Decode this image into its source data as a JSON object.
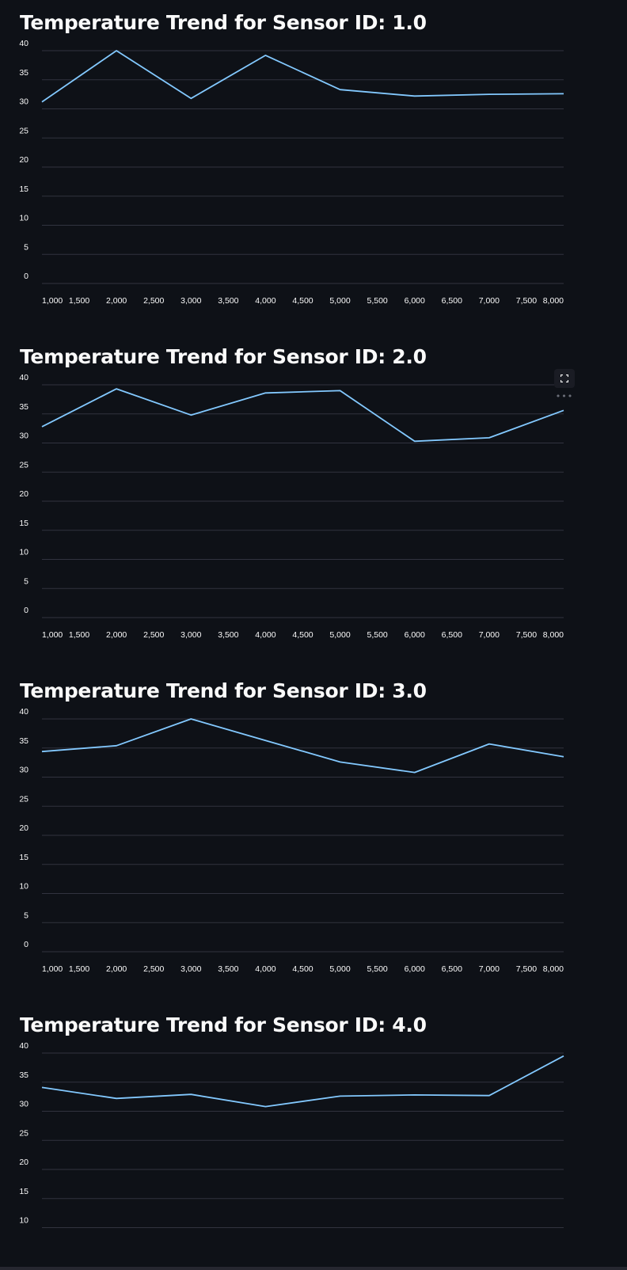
{
  "colors": {
    "background": "#0e1117",
    "line": "#83c9ff",
    "grid": "#31333f",
    "text": "#fafafa"
  },
  "toolbar": {
    "fullscreen_icon": "fullscreen-icon",
    "more_icon": "more-horizontal-icon",
    "more_label": "•••"
  },
  "chart_data": [
    {
      "type": "line",
      "title": "Temperature Trend for Sensor ID: 1.0",
      "xlabel": "",
      "ylabel": "",
      "x": [
        1000,
        2000,
        3000,
        4000,
        5000,
        6000,
        7000,
        8000
      ],
      "y": [
        31.2,
        40.0,
        31.8,
        39.2,
        33.3,
        32.2,
        32.5,
        32.6
      ],
      "xlim": [
        1000,
        8000
      ],
      "ylim": [
        0,
        40
      ],
      "x_ticks": [
        "1,000",
        "1,500",
        "2,000",
        "2,500",
        "3,000",
        "3,500",
        "4,000",
        "4,500",
        "5,000",
        "5,500",
        "6,000",
        "6,500",
        "7,000",
        "7,500",
        "8,000"
      ],
      "y_ticks": [
        "0",
        "5",
        "10",
        "15",
        "20",
        "25",
        "30",
        "35",
        "40"
      ],
      "grid": true
    },
    {
      "type": "line",
      "title": "Temperature Trend for Sensor ID: 2.0",
      "xlabel": "",
      "ylabel": "",
      "x": [
        1000,
        2000,
        3000,
        4000,
        5000,
        6000,
        7000,
        8000
      ],
      "y": [
        32.8,
        39.3,
        34.8,
        38.6,
        39.0,
        30.3,
        30.9,
        35.6
      ],
      "xlim": [
        1000,
        8000
      ],
      "ylim": [
        0,
        40
      ],
      "x_ticks": [
        "1,000",
        "1,500",
        "2,000",
        "2,500",
        "3,000",
        "3,500",
        "4,000",
        "4,500",
        "5,000",
        "5,500",
        "6,000",
        "6,500",
        "7,000",
        "7,500",
        "8,000"
      ],
      "y_ticks": [
        "0",
        "5",
        "10",
        "15",
        "20",
        "25",
        "30",
        "35",
        "40"
      ],
      "grid": true
    },
    {
      "type": "line",
      "title": "Temperature Trend for Sensor ID: 3.0",
      "xlabel": "",
      "ylabel": "",
      "x": [
        1000,
        2000,
        3000,
        4000,
        5000,
        6000,
        7000,
        8000
      ],
      "y": [
        34.4,
        35.4,
        40.0,
        36.3,
        32.6,
        30.8,
        35.7,
        33.5
      ],
      "xlim": [
        1000,
        8000
      ],
      "ylim": [
        0,
        40
      ],
      "x_ticks": [
        "1,000",
        "1,500",
        "2,000",
        "2,500",
        "3,000",
        "3,500",
        "4,000",
        "4,500",
        "5,000",
        "5,500",
        "6,000",
        "6,500",
        "7,000",
        "7,500",
        "8,000"
      ],
      "y_ticks": [
        "0",
        "5",
        "10",
        "15",
        "20",
        "25",
        "30",
        "35",
        "40"
      ],
      "grid": true
    },
    {
      "type": "line",
      "title": "Temperature Trend for Sensor ID: 4.0",
      "xlabel": "",
      "ylabel": "",
      "x": [
        1000,
        2000,
        3000,
        4000,
        5000,
        6000,
        7000,
        8000
      ],
      "y": [
        34.1,
        32.2,
        32.9,
        30.8,
        32.6,
        32.8,
        32.7,
        39.5
      ],
      "xlim": [
        1000,
        8000
      ],
      "ylim": [
        0,
        40
      ],
      "x_ticks": [],
      "y_ticks": [
        "10",
        "15",
        "20",
        "25",
        "30",
        "35",
        "40"
      ],
      "grid": true
    }
  ]
}
